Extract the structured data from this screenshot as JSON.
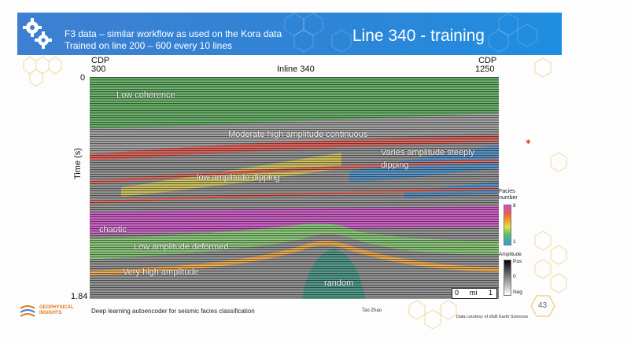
{
  "header": {
    "subtitle_line1": "F3 data – similar workflow as used on the Kora data",
    "subtitle_line2": "Trained on line 200 – 600 every 10 lines",
    "title": "Line 340 - training",
    "icon": "gears-icon",
    "accent_color": "#2f84d6"
  },
  "section": {
    "cdp_left_label": "CDP",
    "cdp_left_value": "300",
    "inline_label": "Inline 340",
    "cdp_right_label": "CDP",
    "cdp_right_value": "1250",
    "time_top": "0",
    "time_axis_label": "Time (s)",
    "time_bottom": "1.84"
  },
  "annotations": [
    "Low coherence",
    "Moderate high amplitude continuous",
    "Varies amplitude steeply",
    "dipping",
    "low amplitude dipping",
    "chaotic",
    "Low amplitude deformed",
    "Very high amplitude",
    "random"
  ],
  "scale_bar": {
    "left": "0",
    "unit": "mi",
    "right": "1"
  },
  "facies_legend": {
    "title_line1": "Facies",
    "title_line2": "number",
    "max": "8",
    "min": "1"
  },
  "amplitude_legend": {
    "title": "Amplitude",
    "pos": "Pos",
    "zero": "0",
    "neg": "Neg"
  },
  "footer": {
    "org_line1": "GEOPHYSICAL",
    "org_line2": "INSIGHTS",
    "org_line3": "",
    "caption": "Deep learning autoencoder for seismic facies classification",
    "author": "Tao Zhao",
    "courtesy": "Data courtesy of dGB Earth Sciences",
    "page": "43"
  }
}
